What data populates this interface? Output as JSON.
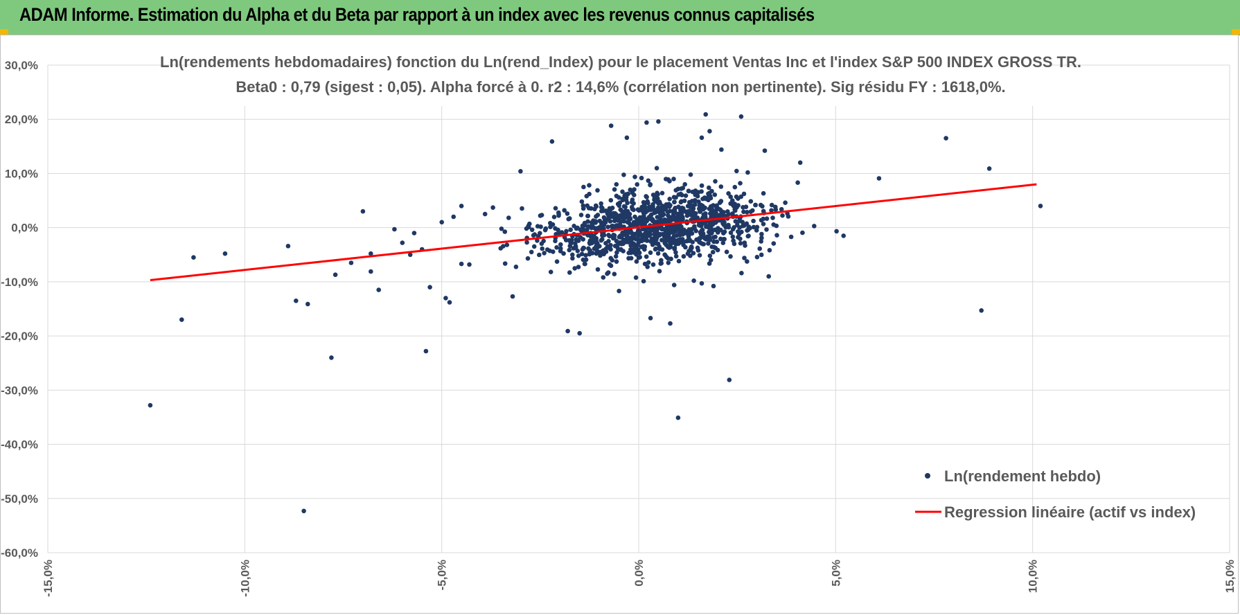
{
  "header": {
    "title": "ADAM Informe. Estimation du Alpha et du Beta par rapport à un index avec les revenus connus capitalisés",
    "background_color": "#7fc97f"
  },
  "chart_data": {
    "type": "scatter",
    "title_line1": "Ln(rendements hebdomadaires) fonction du Ln(rend_Index) pour le placement Ventas Inc et l'index S&P 500 INDEX GROSS TR.",
    "title_line2": "Beta0 : 0,79 (sigest : 0,05).  Alpha forcé à 0. r2 : 14,6% (corrélation non pertinente). Sig résidu FY : 1618,0%.",
    "xlim": [
      -15,
      15
    ],
    "ylim": [
      -60,
      30
    ],
    "x_ticks": [
      "-15,0%",
      "-10,0%",
      "-5,0%",
      "0,0%",
      "5,0%",
      "10,0%",
      "15,0%"
    ],
    "x_tick_values": [
      -15,
      -10,
      -5,
      0,
      5,
      10,
      15
    ],
    "y_ticks": [
      "30,0%",
      "20,0%",
      "10,0%",
      "0,0%",
      "-10,0%",
      "-20,0%",
      "-30,0%",
      "-40,0%",
      "-50,0%",
      "-60,0%"
    ],
    "y_tick_values": [
      30,
      20,
      10,
      0,
      -10,
      -20,
      -30,
      -40,
      -50,
      -60
    ],
    "grid": true,
    "legend_position": "bottom-right",
    "series": [
      {
        "name": "Ln(rendement hebdo)",
        "type": "scatter",
        "color": "#1f3864",
        "points": [
          [
            -12.4,
            -32.8
          ],
          [
            -11.6,
            -17.0
          ],
          [
            -11.3,
            -5.5
          ],
          [
            -10.5,
            -4.8
          ],
          [
            -8.9,
            -3.4
          ],
          [
            -8.7,
            -13.5
          ],
          [
            -8.5,
            -52.3
          ],
          [
            -8.4,
            -14.1
          ],
          [
            -7.8,
            -24.0
          ],
          [
            -7.7,
            -8.7
          ],
          [
            -7.3,
            -6.5
          ],
          [
            -7.0,
            3.0
          ],
          [
            -6.8,
            -4.8
          ],
          [
            -6.8,
            -8.1
          ],
          [
            -6.6,
            -11.5
          ],
          [
            -6.2,
            -0.3
          ],
          [
            -6.0,
            -2.8
          ],
          [
            -5.8,
            -5.0
          ],
          [
            -5.7,
            -1.0
          ],
          [
            -5.5,
            -4.0
          ],
          [
            -5.3,
            -11.0
          ],
          [
            -5.4,
            -22.8
          ],
          [
            -5.0,
            1.0
          ],
          [
            -4.9,
            -13.0
          ],
          [
            -4.8,
            -13.8
          ],
          [
            -4.7,
            2.0
          ],
          [
            -4.5,
            4.0
          ],
          [
            -4.5,
            -6.7
          ],
          [
            -4.3,
            -6.8
          ],
          [
            -3.9,
            2.5
          ],
          [
            -3.7,
            3.7
          ],
          [
            -3.2,
            -12.7
          ],
          [
            -3.0,
            10.4
          ],
          [
            -2.2,
            15.9
          ],
          [
            -1.8,
            -19.1
          ],
          [
            -1.5,
            -19.5
          ],
          [
            -1.4,
            7.5
          ],
          [
            -0.9,
            -9.2
          ],
          [
            -0.8,
            -8.5
          ],
          [
            -0.7,
            18.8
          ],
          [
            -0.5,
            -11.7
          ],
          [
            -0.3,
            16.6
          ],
          [
            0.2,
            19.4
          ],
          [
            0.3,
            -16.7
          ],
          [
            0.5,
            19.6
          ],
          [
            0.8,
            -17.7
          ],
          [
            0.9,
            -10.6
          ],
          [
            1.0,
            -35.1
          ],
          [
            1.4,
            -9.8
          ],
          [
            1.6,
            -10.3
          ],
          [
            1.6,
            16.6
          ],
          [
            1.7,
            20.9
          ],
          [
            1.8,
            17.8
          ],
          [
            1.9,
            -10.8
          ],
          [
            2.1,
            14.4
          ],
          [
            2.3,
            -28.1
          ],
          [
            2.6,
            20.5
          ],
          [
            3.2,
            14.2
          ],
          [
            3.3,
            -9.0
          ],
          [
            4.1,
            12.0
          ],
          [
            5.2,
            -1.5
          ],
          [
            6.1,
            9.1
          ],
          [
            7.8,
            16.5
          ],
          [
            8.7,
            -15.3
          ],
          [
            8.9,
            10.9
          ],
          [
            10.2,
            4.0
          ]
        ],
        "cluster": {
          "count": 1150,
          "x_mean": 0.45,
          "x_sd": 1.45,
          "y_slope": 0.79,
          "y_noise_sd": 3.3
        }
      },
      {
        "name": "Regression linéaire (actif vs index)",
        "type": "line",
        "color": "#ff0000",
        "x": [
          -12.4,
          10.1
        ],
        "y": [
          -9.7,
          8.0
        ]
      }
    ]
  }
}
